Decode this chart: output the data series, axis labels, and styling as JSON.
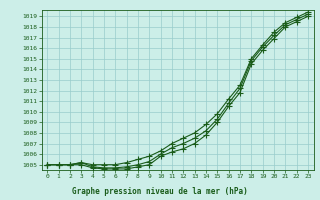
{
  "xlabel_label": "Graphe pression niveau de la mer (hPa)",
  "x": [
    0,
    1,
    2,
    3,
    4,
    5,
    6,
    7,
    8,
    9,
    10,
    11,
    12,
    13,
    14,
    15,
    16,
    17,
    18,
    19,
    20,
    21,
    22,
    23
  ],
  "line1": [
    1005.0,
    1005.0,
    1005.0,
    1005.2,
    1005.0,
    1005.0,
    1005.0,
    1005.2,
    1005.5,
    1005.8,
    1006.3,
    1007.0,
    1007.5,
    1008.0,
    1008.8,
    1009.8,
    1011.2,
    1012.5,
    1015.0,
    1016.3,
    1017.5,
    1018.4,
    1018.9,
    1019.4
  ],
  "line2": [
    1005.0,
    1005.0,
    1005.0,
    1005.2,
    1004.8,
    1004.7,
    1004.7,
    1004.8,
    1005.0,
    1005.3,
    1006.0,
    1006.6,
    1007.0,
    1007.5,
    1008.2,
    1009.3,
    1010.8,
    1012.2,
    1014.8,
    1016.1,
    1017.2,
    1018.2,
    1018.7,
    1019.2
  ],
  "line3": [
    1005.0,
    1005.0,
    1005.0,
    1005.0,
    1004.7,
    1004.6,
    1004.6,
    1004.6,
    1004.8,
    1005.0,
    1005.8,
    1006.2,
    1006.5,
    1007.0,
    1007.8,
    1009.0,
    1010.5,
    1011.8,
    1014.5,
    1015.8,
    1016.9,
    1018.0,
    1018.5,
    1019.0
  ],
  "ylim_min": 1004.5,
  "ylim_max": 1019.6,
  "yticks": [
    1005,
    1006,
    1007,
    1008,
    1009,
    1010,
    1011,
    1012,
    1013,
    1014,
    1015,
    1016,
    1017,
    1018,
    1019
  ],
  "line_color": "#1a5c1a",
  "bg_color": "#cceee8",
  "grid_color": "#99cccc",
  "marker": "+",
  "marker_size": 4,
  "line_width": 0.8,
  "tick_fontsize": 4.5,
  "xlabel_fontsize": 5.5
}
